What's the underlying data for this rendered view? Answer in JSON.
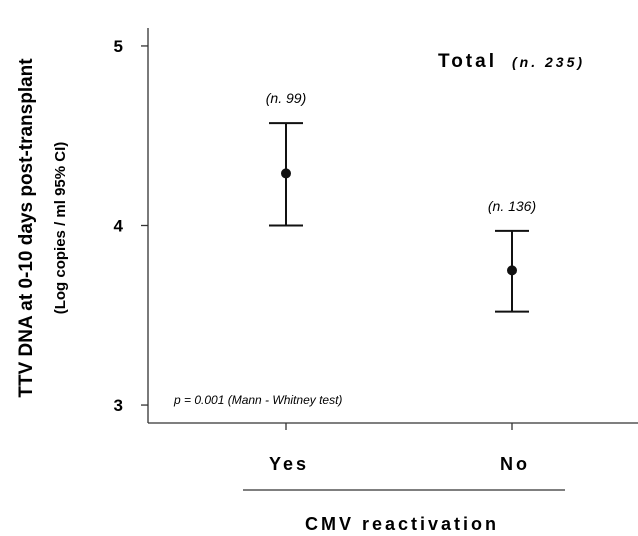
{
  "chart_data": {
    "type": "errorbar",
    "ylabel": "TTV DNA at 0-10 days post-transplant",
    "ylabel_sub": "(Log copies / ml 95% CI)",
    "xlabel": "CMV reactivation",
    "ylim": [
      2.9,
      5.1
    ],
    "yticks": [
      "3",
      "4",
      "5"
    ],
    "ytick_values": [
      3,
      4,
      5
    ],
    "categories": [
      "Yes",
      "No"
    ],
    "series": [
      {
        "means": [
          4.29,
          3.75
        ],
        "lower": [
          4.0,
          3.52
        ],
        "upper": [
          4.57,
          3.97
        ],
        "n_labels": [
          "(n. 99)",
          "(n. 136)"
        ]
      }
    ],
    "annotations": {
      "total": "Total",
      "total_n": "(n. 235)",
      "pvalue": "p = 0.001 (Mann - Whitney test)"
    },
    "grid": false
  }
}
